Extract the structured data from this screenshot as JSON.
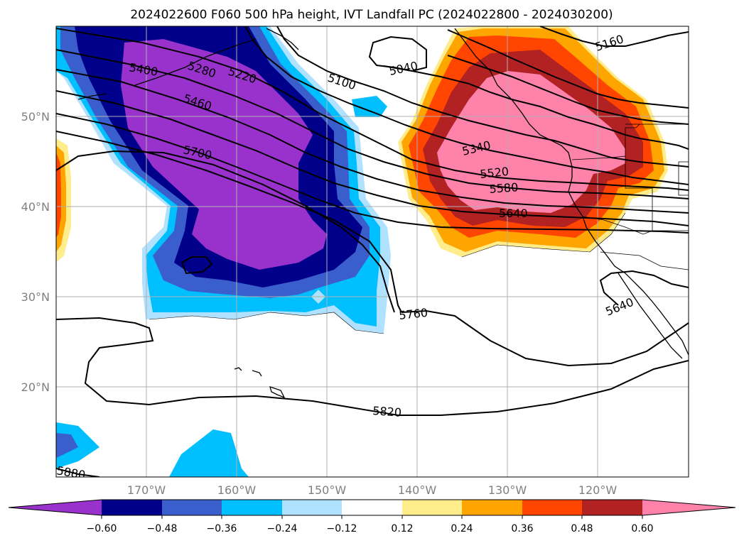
{
  "title": "2024022600 F060 500 hPa height, IVT Landfall PC (2024022800 - 2024030200)",
  "map": {
    "lon_labels": [
      "170°W",
      "160°W",
      "150°W",
      "140°W",
      "130°W",
      "120°W"
    ],
    "lat_labels": [
      "50°N",
      "40°N",
      "30°N",
      "20°N"
    ],
    "contour_labels": [
      "5400",
      "5280",
      "5220",
      "5100",
      "5040",
      "5160",
      "5460",
      "5700",
      "5340",
      "5520",
      "5580",
      "5640",
      "5760",
      "5640",
      "5820",
      "5880"
    ]
  },
  "colorbar": {
    "ticks": [
      "−0.60",
      "−0.48",
      "−0.36",
      "−0.24",
      "−0.12",
      "0.12",
      "0.24",
      "0.36",
      "0.48",
      "0.60"
    ],
    "colors": {
      "lt_m060": "#9932cc",
      "m060_m048": "#00008b",
      "m048_m036": "#3a5fcd",
      "m036_m024": "#00bfff",
      "m024_m012": "#b0e2ff",
      "m012_012": "#ffffff",
      "p012_024": "#ffec8b",
      "p024_036": "#ffa500",
      "p036_048": "#ff4500",
      "p048_060": "#b22222",
      "gt_060": "#ff82ab"
    }
  }
}
